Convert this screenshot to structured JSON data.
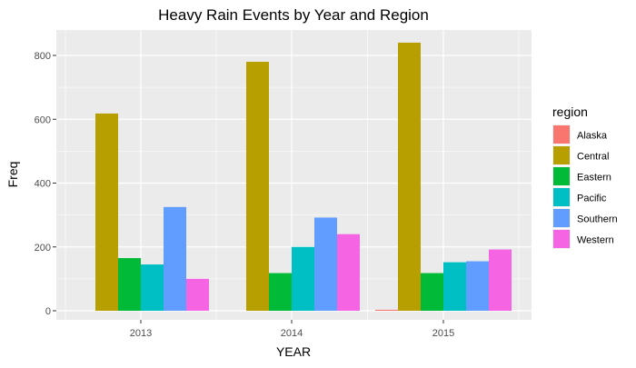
{
  "chart_data": {
    "type": "bar",
    "title": "Heavy Rain Events by Year and Region",
    "xlabel": "YEAR",
    "ylabel": "Freq",
    "categories": [
      "2013",
      "2014",
      "2015"
    ],
    "ylim": [
      0,
      850
    ],
    "yticks": [
      0,
      200,
      400,
      600,
      800
    ],
    "grid": true,
    "legend_title": "region",
    "legend_position": "right",
    "series": [
      {
        "name": "Alaska",
        "color": "#F8766D",
        "values": [
          0,
          0,
          3
        ]
      },
      {
        "name": "Central",
        "color": "#B79F00",
        "values": [
          618,
          780,
          840
        ]
      },
      {
        "name": "Eastern",
        "color": "#00BA38",
        "values": [
          165,
          118,
          118
        ]
      },
      {
        "name": "Pacific",
        "color": "#00BFC4",
        "values": [
          145,
          200,
          152
        ]
      },
      {
        "name": "Southern",
        "color": "#619CFF",
        "values": [
          325,
          292,
          155
        ]
      },
      {
        "name": "Western",
        "color": "#F564E3",
        "values": [
          100,
          240,
          192
        ]
      }
    ],
    "panel_background": "#EBEBEB",
    "grid_color": "#FFFFFF"
  }
}
